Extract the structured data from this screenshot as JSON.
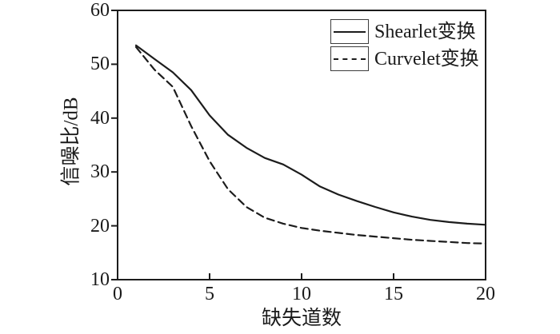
{
  "figure": {
    "background": "#ffffff",
    "ink_color": "#1c1c1c"
  },
  "chart_data": {
    "type": "line",
    "title": "",
    "xlabel": "缺失道数",
    "ylabel": "信噪比/dB",
    "xlim": [
      0,
      20
    ],
    "ylim": [
      10,
      60
    ],
    "xticks": [
      0,
      5,
      10,
      15,
      20
    ],
    "xtick_labels": [
      "0",
      "5",
      "10",
      "15",
      "20"
    ],
    "yticks": [
      60,
      50,
      40,
      30,
      20,
      10
    ],
    "ytick_labels": [
      "60",
      "50",
      "40",
      "30",
      "20",
      "10"
    ],
    "grid": false,
    "legend_position": "top-right",
    "x": [
      1,
      2,
      3,
      4,
      5,
      6,
      7,
      8,
      9,
      10,
      11,
      12,
      13,
      14,
      15,
      16,
      17,
      18,
      19,
      20
    ],
    "series": [
      {
        "name": "Shearlet变换",
        "style": "solid",
        "color": "#1c1c1c",
        "values": [
          53.5,
          51.0,
          48.5,
          45.2,
          40.5,
          36.9,
          34.5,
          32.6,
          31.4,
          29.5,
          27.3,
          25.8,
          24.6,
          23.5,
          22.5,
          21.7,
          21.1,
          20.7,
          20.4,
          20.2
        ]
      },
      {
        "name": "Curvelet变换",
        "style": "dashed",
        "color": "#1c1c1c",
        "values": [
          53.2,
          49.0,
          45.8,
          38.5,
          32.0,
          26.8,
          23.5,
          21.5,
          20.4,
          19.6,
          19.1,
          18.7,
          18.3,
          18.0,
          17.7,
          17.4,
          17.2,
          17.0,
          16.8,
          16.7
        ]
      }
    ]
  }
}
